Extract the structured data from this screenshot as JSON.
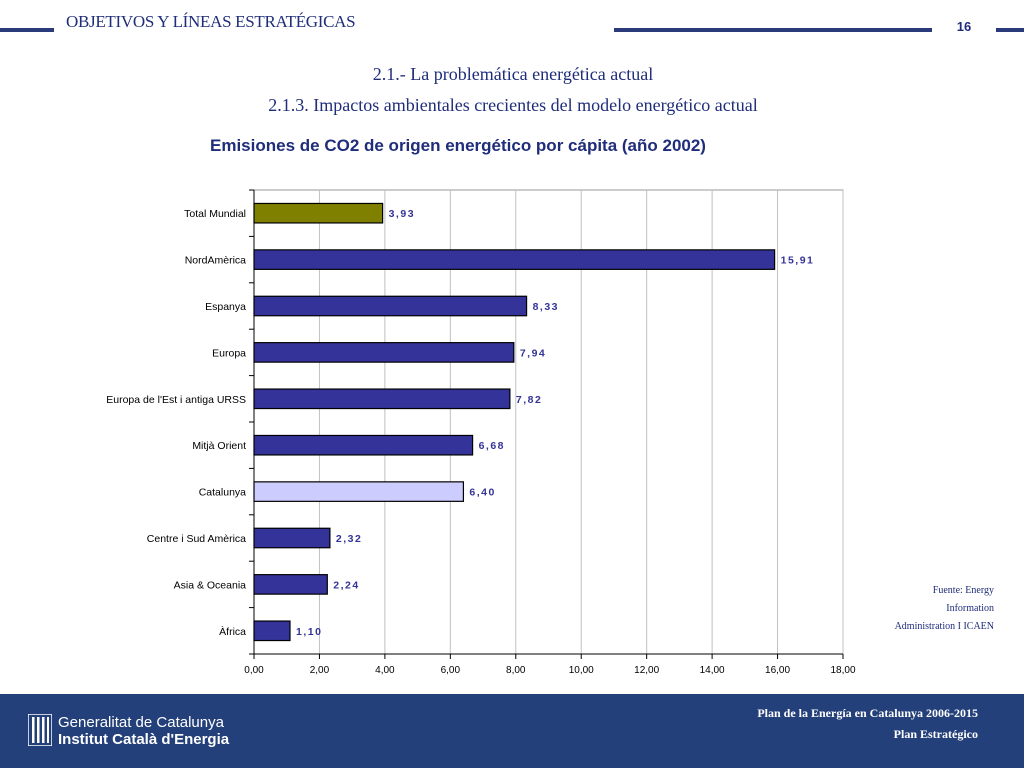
{
  "header": {
    "title": "OBJETIVOS Y LÍNEAS ESTRATÉGICAS",
    "page_number": "16",
    "subtitle1": "2.1.- La problemática energética actual",
    "subtitle2": "2.1.3. Impactos ambientales crecientes del modelo energético actual"
  },
  "source": {
    "line1": "Fuente: Energy",
    "line2": "Information",
    "line3": "Administration I ICAEN"
  },
  "footer": {
    "org_line1": "Generalitat de Catalunya",
    "org_line2": "Institut Català d'Energia",
    "plan_line1": "Plan de la Energía en Catalunya 2006-2015",
    "plan_line2": "Plan Estratégico"
  },
  "colors": {
    "bar_default": "#333399",
    "bar_world": "#808000",
    "bar_catalunya": "#ccccff",
    "label_color": "#333399",
    "theme": "#1f2d7a"
  },
  "chart_data": {
    "type": "bar",
    "orientation": "horizontal",
    "title": "Emisiones de CO2 de origen energético por cápita (año 2002)",
    "categories": [
      "Total Mundial",
      "NordAmèrica",
      "Espanya",
      "Europa",
      "Europa de l'Est i antiga URSS",
      "Mitjà Orient",
      "Catalunya",
      "Centre i Sud Amèrica",
      "Asia & Oceania",
      "Àfrica"
    ],
    "values": [
      3.93,
      15.91,
      8.33,
      7.94,
      7.82,
      6.68,
      6.4,
      2.32,
      2.24,
      1.1
    ],
    "value_labels": [
      "3,93",
      "15,91",
      "8,33",
      "7,94",
      "7,82",
      "6,68",
      "6,40",
      "2,32",
      "2,24",
      "1,10"
    ],
    "xlim": [
      0,
      18
    ],
    "xticks": [
      "0,00",
      "2,00",
      "4,00",
      "6,00",
      "8,00",
      "10,00",
      "12,00",
      "14,00",
      "16,00",
      "18,00"
    ],
    "grid": true,
    "xlabel": "",
    "ylabel": ""
  }
}
